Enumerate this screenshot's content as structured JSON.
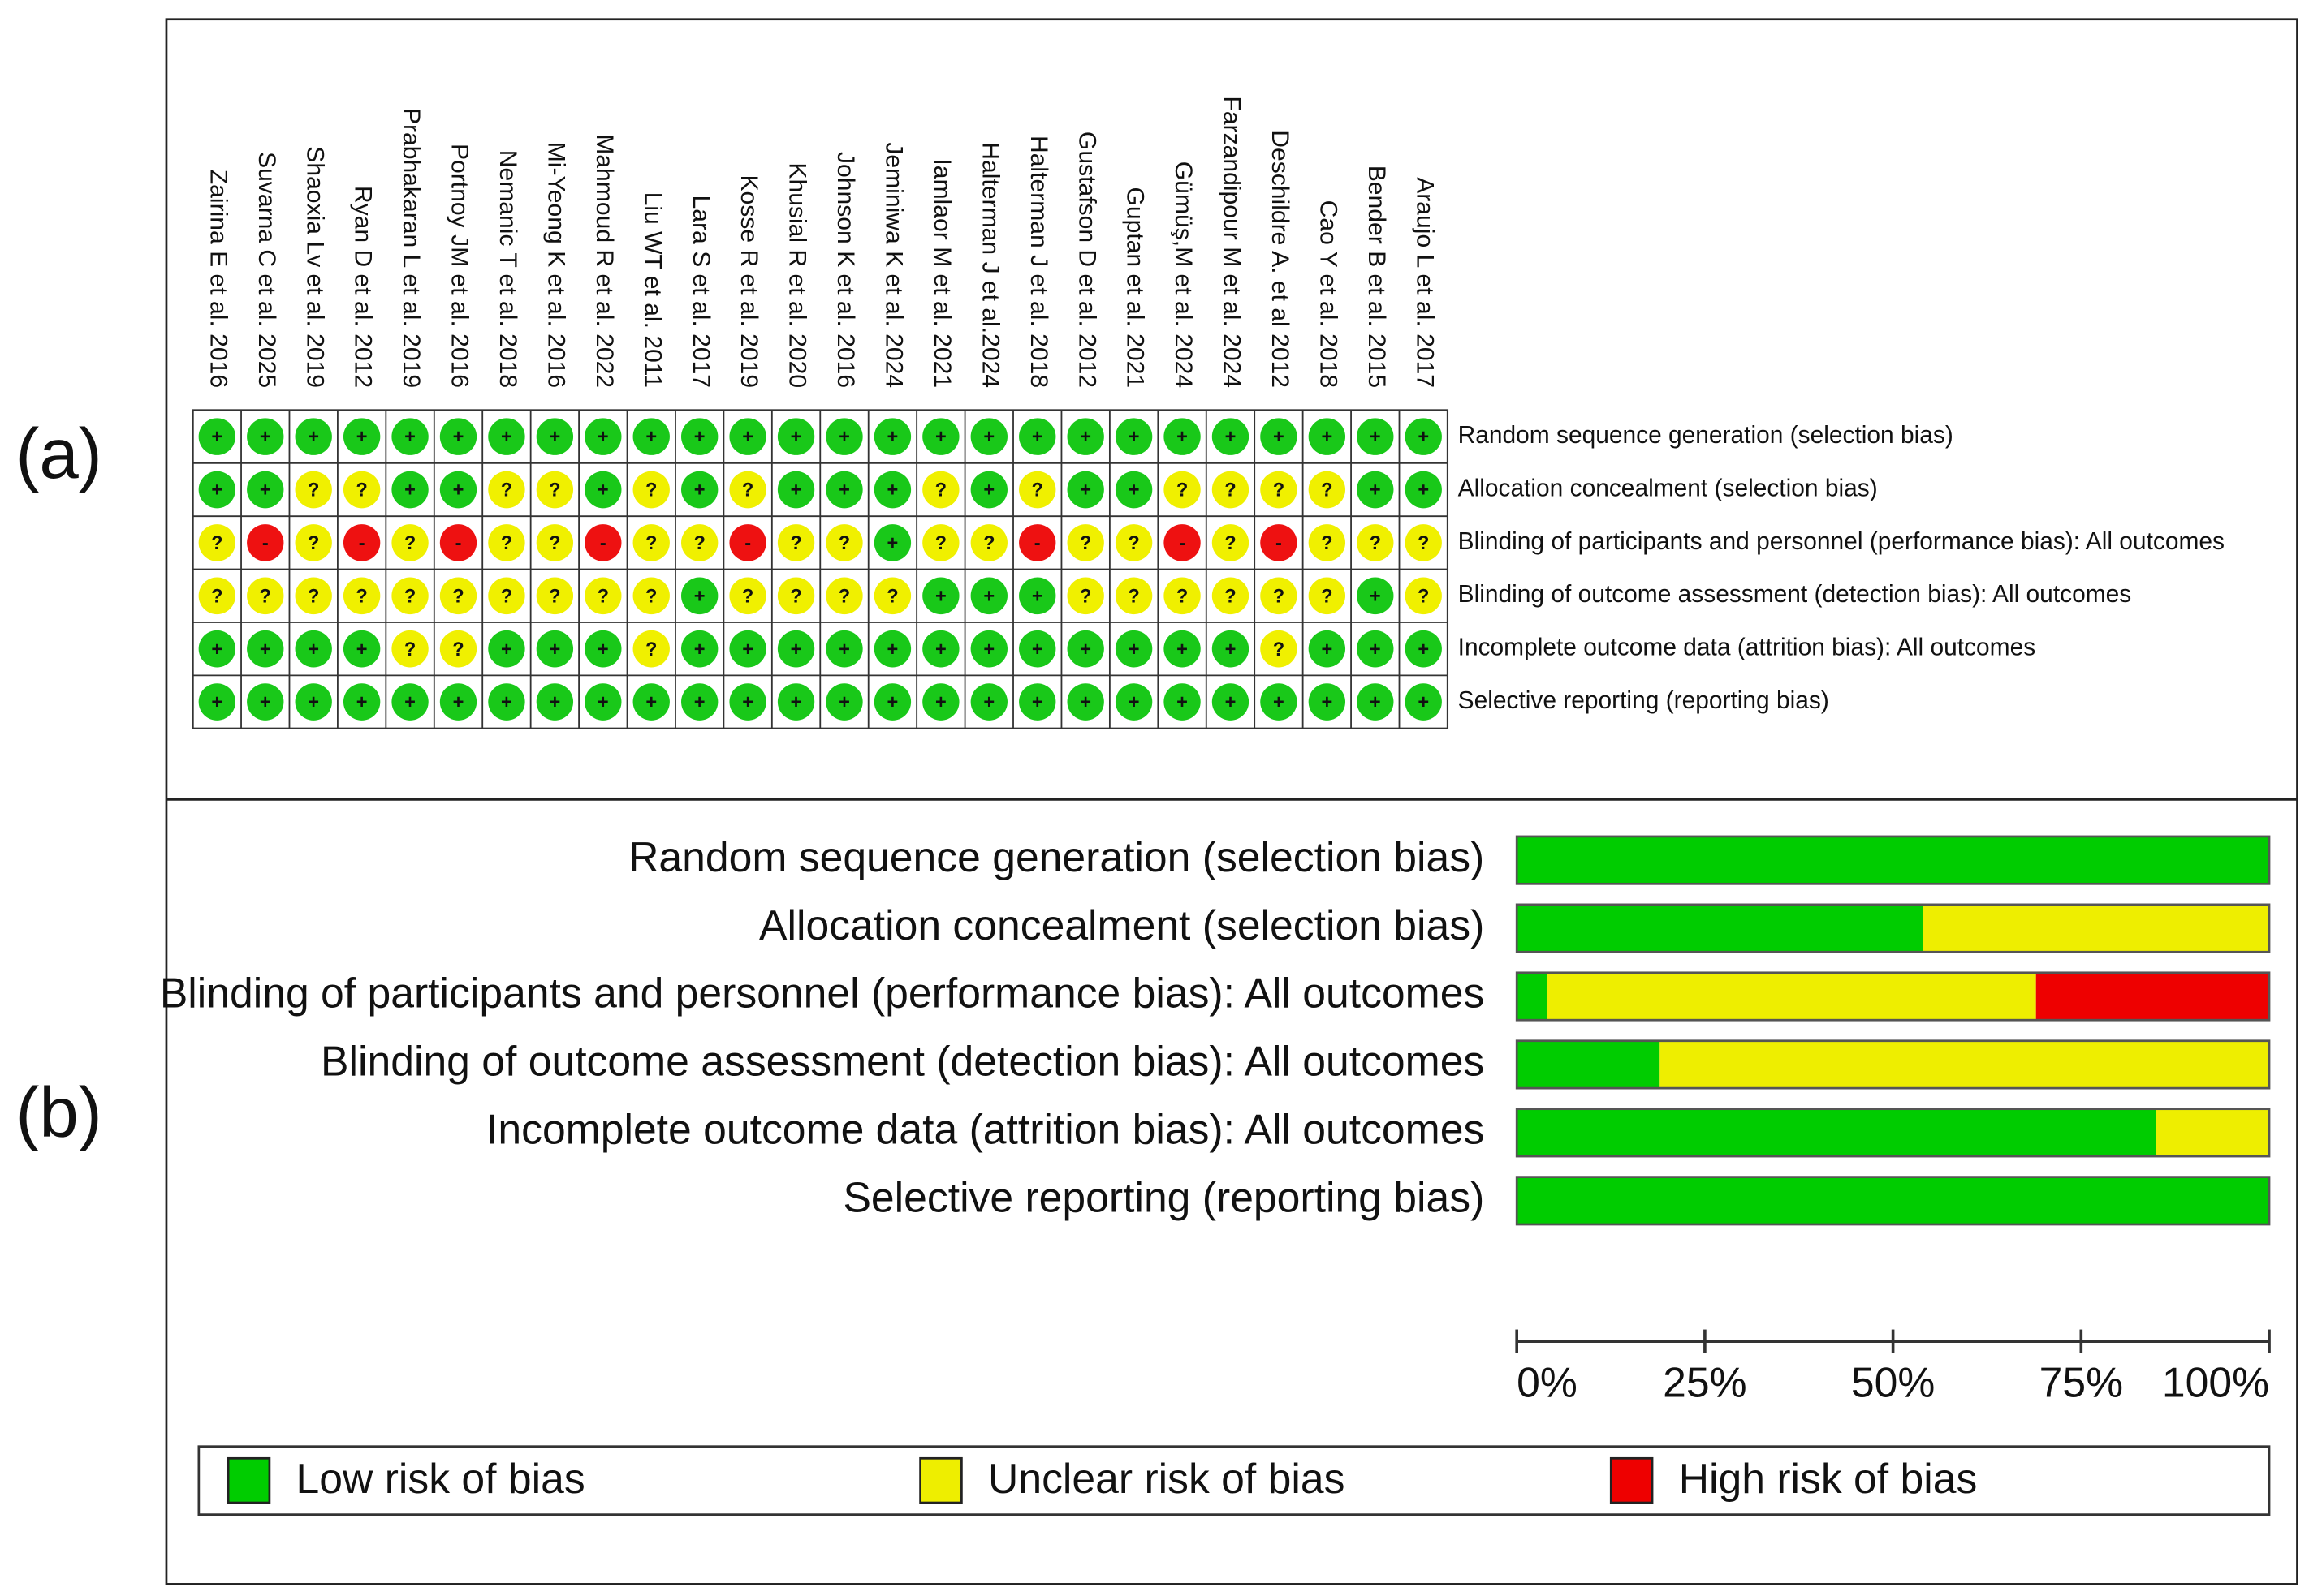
{
  "chart_data": [
    {
      "type": "traffic-light",
      "panel_label": "(a)",
      "studies": [
        "Zairina E et al. 2016",
        "Suvarna C et al. 2025",
        "Shaoxia Lv et al. 2019",
        "Ryan D et al. 2012",
        "Prabhakaran L et al. 2019",
        "Portnoy JM et al. 2016",
        "Nemanic T et al. 2018",
        "Mi-Yeong K et al. 2016",
        "Mahmoud R et al. 2022",
        "Liu WT et al. 2011",
        "Lara S et al. 2017",
        "Kosse R et al. 2019",
        "Khusial R et al. 2020",
        "Johnson K et al. 2016",
        "Jeminiwa K et al. 2024",
        "Iamlaor M et al. 2021",
        "Halterman J et al.2024",
        "Halterman J et al. 2018",
        "Gustafson D et al. 2012",
        "Guptan et al. 2021",
        "Gümüş,M et al. 2024",
        "Farzandipour M et al. 2024",
        "Deschildre A. et al 2012",
        "Cao Y et al. 2018",
        "Bender B et al. 2015",
        "Araujo L et al. 2017"
      ],
      "domains": [
        "Random sequence generation (selection bias)",
        "Allocation concealment (selection bias)",
        "Blinding of participants and personnel (performance bias): All outcomes",
        "Blinding of outcome assessment (detection bias): All outcomes",
        "Incomplete outcome data (attrition bias): All outcomes",
        "Selective reporting (reporting bias)"
      ],
      "judgements": [
        [
          "+",
          "+",
          "+",
          "+",
          "+",
          "+",
          "+",
          "+",
          "+",
          "+",
          "+",
          "+",
          "+",
          "+",
          "+",
          "+",
          "+",
          "+",
          "+",
          "+",
          "+",
          "+",
          "+",
          "+",
          "+",
          "+"
        ],
        [
          "+",
          "+",
          "?",
          "?",
          "+",
          "+",
          "?",
          "?",
          "+",
          "?",
          "+",
          "?",
          "+",
          "+",
          "+",
          "?",
          "+",
          "?",
          "+",
          "+",
          "?",
          "?",
          "?",
          "?",
          "+",
          "+"
        ],
        [
          "?",
          "-",
          "?",
          "-",
          "?",
          "-",
          "?",
          "?",
          "-",
          "?",
          "?",
          "-",
          "?",
          "?",
          "+",
          "?",
          "?",
          "-",
          "?",
          "?",
          "-",
          "?",
          "-",
          "?",
          "?",
          "?"
        ],
        [
          "?",
          "?",
          "?",
          "?",
          "?",
          "?",
          "?",
          "?",
          "?",
          "?",
          "+",
          "?",
          "?",
          "?",
          "?",
          "+",
          "+",
          "+",
          "?",
          "?",
          "?",
          "?",
          "?",
          "?",
          "+",
          "?"
        ],
        [
          "+",
          "+",
          "+",
          "+",
          "?",
          "?",
          "+",
          "+",
          "+",
          "?",
          "+",
          "+",
          "+",
          "+",
          "+",
          "+",
          "+",
          "+",
          "+",
          "+",
          "+",
          "+",
          "?",
          "+",
          "+",
          "+"
        ],
        [
          "+",
          "+",
          "+",
          "+",
          "+",
          "+",
          "+",
          "+",
          "+",
          "+",
          "+",
          "+",
          "+",
          "+",
          "+",
          "+",
          "+",
          "+",
          "+",
          "+",
          "+",
          "+",
          "+",
          "+",
          "+",
          "+"
        ]
      ],
      "judgement_colors": {
        "+": "#19c819",
        "?": "#f0f000",
        "-": "#ee1111"
      }
    },
    {
      "type": "stacked-bar",
      "panel_label": "(b)",
      "orientation": "horizontal",
      "categories": [
        "Random sequence generation (selection bias)",
        "Allocation concealment (selection bias)",
        "Blinding of participants and personnel (performance bias): All outcomes",
        "Blinding of outcome assessment (detection bias): All outcomes",
        "Incomplete outcome data (attrition bias): All outcomes",
        "Selective reporting (reporting bias)"
      ],
      "series": [
        {
          "name": "Low risk of bias",
          "color": "#00cc00",
          "values": [
            100,
            54,
            4,
            19,
            85,
            100
          ]
        },
        {
          "name": "Unclear risk of bias",
          "color": "#eeee00",
          "values": [
            0,
            46,
            65,
            81,
            15,
            0
          ]
        },
        {
          "name": "High risk of bias",
          "color": "#ee0000",
          "values": [
            0,
            0,
            31,
            0,
            0,
            0
          ]
        }
      ],
      "xlim": [
        0,
        100
      ],
      "xticks": [
        {
          "value": 0,
          "label": "0%"
        },
        {
          "value": 25,
          "label": "25%"
        },
        {
          "value": 50,
          "label": "50%"
        },
        {
          "value": 75,
          "label": "75%"
        },
        {
          "value": 100,
          "label": "100%"
        }
      ]
    }
  ]
}
